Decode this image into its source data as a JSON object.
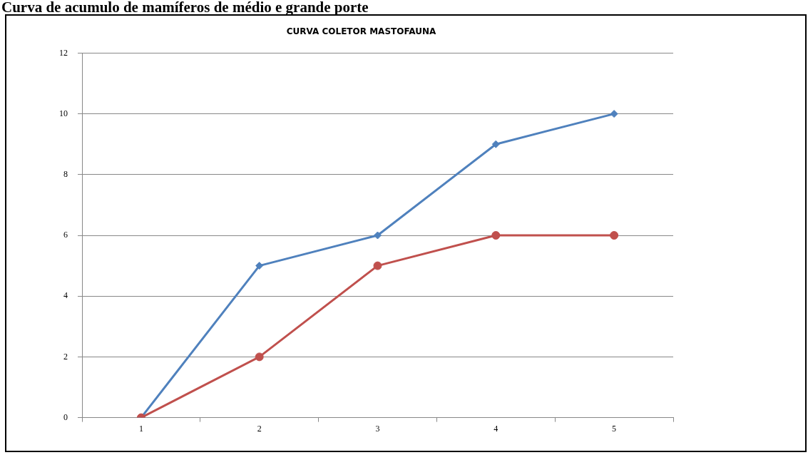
{
  "chart_data": {
    "type": "line",
    "title": "CURVA COLETOR MASTOFAUNA",
    "annotations": [
      "Curva de acumulo de mamíferos de médio e grande porte"
    ],
    "categories": [
      "1",
      "2",
      "3",
      "4",
      "5"
    ],
    "series": [
      {
        "color": "#c0504d",
        "marker": "circle",
        "values": [
          0,
          2,
          5,
          6,
          6
        ]
      },
      {
        "color": "#4f81bd",
        "marker": "diamond",
        "values": [
          0,
          5,
          6,
          9,
          10
        ]
      }
    ],
    "ylim": [
      0,
      12
    ],
    "yticks": [
      0,
      2,
      4,
      6,
      8,
      10,
      12
    ],
    "grid": "y",
    "line_style": "solid"
  }
}
